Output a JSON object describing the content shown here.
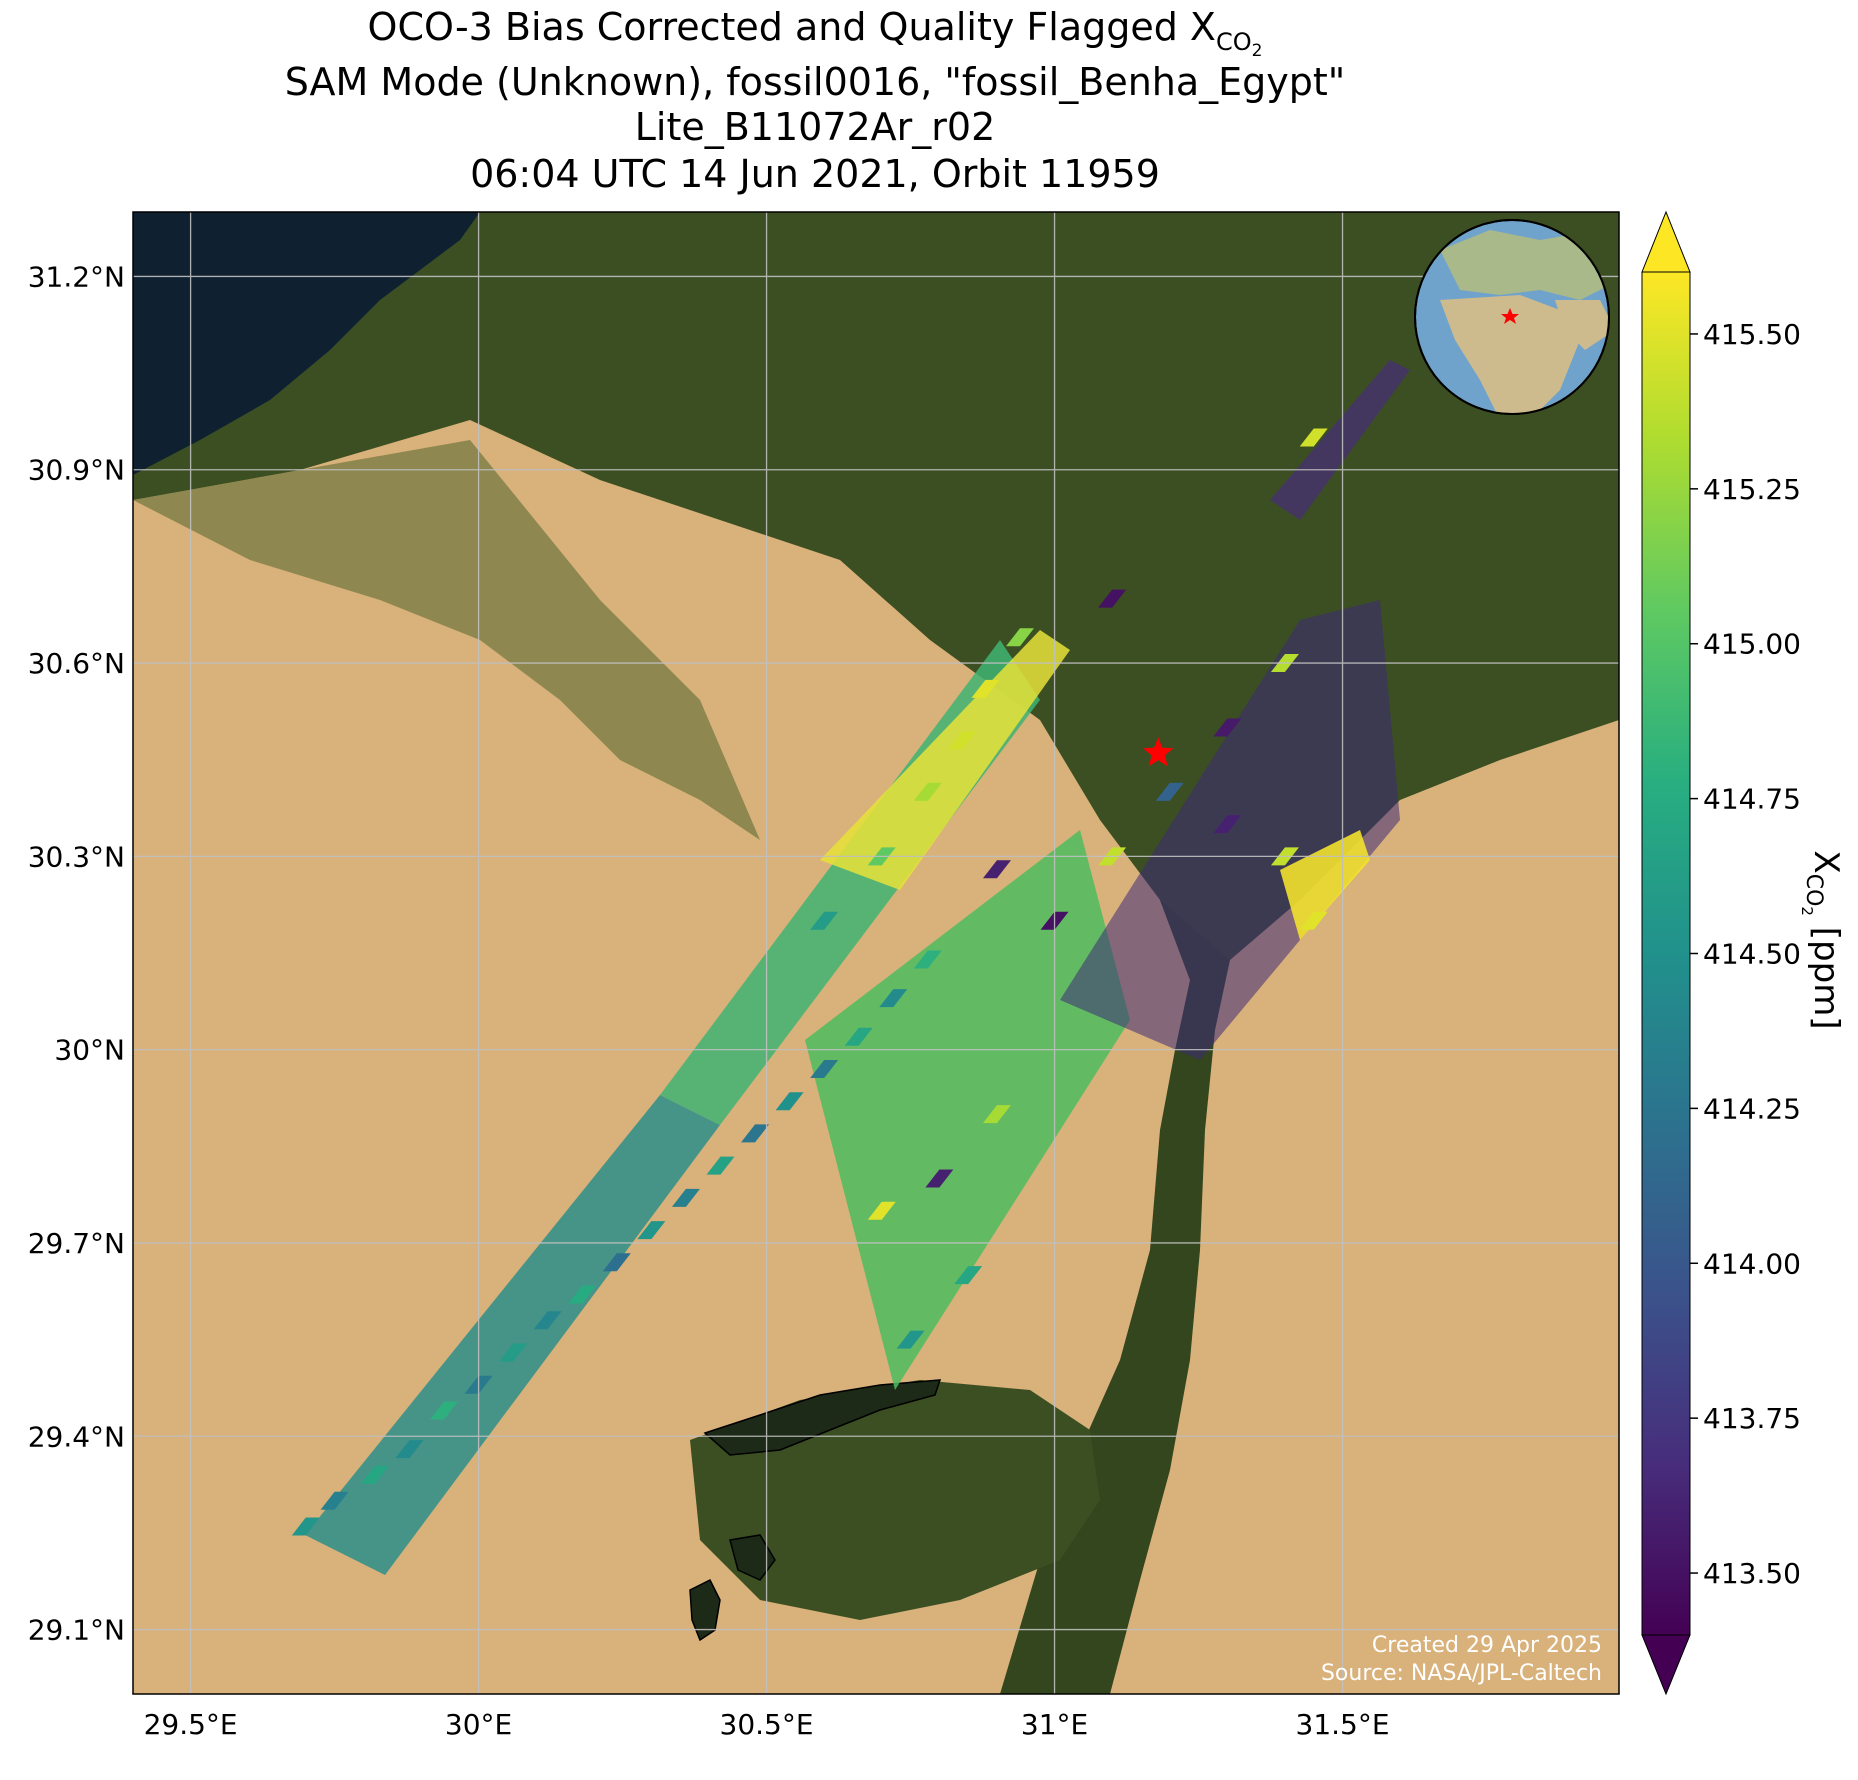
{
  "title": {
    "line1_prefix": "OCO-3 Bias Corrected and Quality Flagged X",
    "line1_sub": "CO",
    "line1_subsub": "2",
    "line2": "SAM Mode (Unknown), fossil0016, \"fossil_Benha_Egypt\"",
    "line3": "Lite_B11072Ar_r02",
    "line4": "06:04 UTC 14 Jun 2021, Orbit 11959"
  },
  "credits": {
    "created": "Created 29 Apr 2025",
    "source": "Source: NASA/JPL-Caltech"
  },
  "colors": {
    "desert": "#d9b17a",
    "vegetation": "#3a4f22",
    "sea": "#0f2030",
    "lake": "#1e2a1a",
    "target_marker": "#ff0000",
    "gridline": "#c0c0c0"
  },
  "chart_data": {
    "type": "heatmap",
    "description_of_layer": "satellite basemap",
    "xlim": [
      29.4,
      31.98
    ],
    "ylim": [
      29.0,
      31.3
    ],
    "x_ticks": [
      29.5,
      30.0,
      30.5,
      31.0,
      31.5
    ],
    "x_tick_labels": [
      "29.5°E",
      "30°E",
      "30.5°E",
      "31°E",
      "31.5°E"
    ],
    "y_ticks": [
      29.1,
      29.4,
      29.7,
      30.0,
      30.3,
      30.6,
      30.9,
      31.2
    ],
    "y_tick_labels": [
      "29.1°N",
      "29.4°N",
      "29.7°N",
      "30°N",
      "30.3°N",
      "30.6°N",
      "30.9°N",
      "31.2°N"
    ],
    "grid": true,
    "target": {
      "name": "fossil_Benha_Egypt",
      "lon": 31.18,
      "lat": 30.46
    },
    "colorbar": {
      "label_prefix": "X",
      "label_sub": "CO",
      "label_subsub": "2",
      "label_suffix": " [ppm]",
      "vmin": 413.4,
      "vmax": 415.6,
      "ticks": [
        413.5,
        413.75,
        414.0,
        414.25,
        414.5,
        414.75,
        415.0,
        415.25,
        415.5
      ],
      "tick_labels": [
        "413.50",
        "413.75",
        "414.00",
        "414.25",
        "414.50",
        "414.75",
        "415.00",
        "415.25",
        "415.50"
      ],
      "extend": "both",
      "colormap": "viridis"
    },
    "swaths": [
      {
        "lon": 29.7,
        "lat": 29.26,
        "value": 414.55
      },
      {
        "lon": 29.75,
        "lat": 29.3,
        "value": 414.35
      },
      {
        "lon": 29.82,
        "lat": 29.34,
        "value": 414.7
      },
      {
        "lon": 29.88,
        "lat": 29.38,
        "value": 414.45
      },
      {
        "lon": 29.94,
        "lat": 29.44,
        "value": 414.8
      },
      {
        "lon": 30.0,
        "lat": 29.48,
        "value": 414.3
      },
      {
        "lon": 30.06,
        "lat": 29.53,
        "value": 414.6
      },
      {
        "lon": 30.12,
        "lat": 29.58,
        "value": 414.4
      },
      {
        "lon": 30.18,
        "lat": 29.62,
        "value": 414.75
      },
      {
        "lon": 30.24,
        "lat": 29.67,
        "value": 414.2
      },
      {
        "lon": 30.3,
        "lat": 29.72,
        "value": 414.55
      },
      {
        "lon": 30.36,
        "lat": 29.77,
        "value": 414.35
      },
      {
        "lon": 30.42,
        "lat": 29.82,
        "value": 414.65
      },
      {
        "lon": 30.48,
        "lat": 29.87,
        "value": 414.25
      },
      {
        "lon": 30.54,
        "lat": 29.92,
        "value": 414.5
      },
      {
        "lon": 30.6,
        "lat": 29.97,
        "value": 414.3
      },
      {
        "lon": 30.66,
        "lat": 30.02,
        "value": 414.7
      },
      {
        "lon": 30.72,
        "lat": 30.08,
        "value": 414.45
      },
      {
        "lon": 30.78,
        "lat": 30.14,
        "value": 414.8
      },
      {
        "lon": 30.6,
        "lat": 30.2,
        "value": 414.6
      },
      {
        "lon": 30.7,
        "lat": 30.3,
        "value": 415.05
      },
      {
        "lon": 30.78,
        "lat": 30.4,
        "value": 415.3
      },
      {
        "lon": 30.84,
        "lat": 30.48,
        "value": 415.45
      },
      {
        "lon": 30.88,
        "lat": 30.56,
        "value": 415.5
      },
      {
        "lon": 30.94,
        "lat": 30.64,
        "value": 415.2
      },
      {
        "lon": 30.9,
        "lat": 30.28,
        "value": 413.6
      },
      {
        "lon": 31.0,
        "lat": 30.2,
        "value": 413.5
      },
      {
        "lon": 31.1,
        "lat": 30.3,
        "value": 415.4
      },
      {
        "lon": 31.2,
        "lat": 30.4,
        "value": 414.1
      },
      {
        "lon": 31.3,
        "lat": 30.35,
        "value": 413.6
      },
      {
        "lon": 31.4,
        "lat": 30.3,
        "value": 415.4
      },
      {
        "lon": 31.45,
        "lat": 30.2,
        "value": 415.5
      },
      {
        "lon": 31.4,
        "lat": 30.6,
        "value": 415.35
      },
      {
        "lon": 31.3,
        "lat": 30.5,
        "value": 413.55
      },
      {
        "lon": 31.1,
        "lat": 30.7,
        "value": 413.5
      },
      {
        "lon": 31.45,
        "lat": 30.95,
        "value": 415.45
      },
      {
        "lon": 30.9,
        "lat": 29.9,
        "value": 415.3
      },
      {
        "lon": 30.8,
        "lat": 29.8,
        "value": 413.6
      },
      {
        "lon": 30.7,
        "lat": 29.75,
        "value": 415.5
      },
      {
        "lon": 30.85,
        "lat": 29.65,
        "value": 414.7
      },
      {
        "lon": 30.75,
        "lat": 29.55,
        "value": 414.55
      }
    ]
  }
}
